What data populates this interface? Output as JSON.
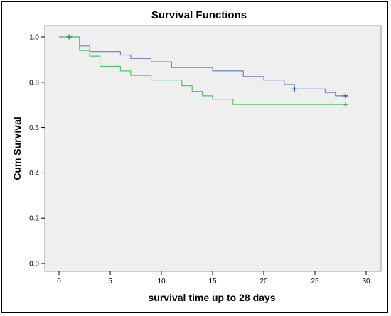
{
  "chart_data": {
    "type": "line",
    "title": "Survival Functions",
    "xlabel": "survival time up to 28 days",
    "ylabel": "Cum Survival",
    "xlim": [
      0,
      30
    ],
    "ylim": [
      0.0,
      1.0
    ],
    "xticks": [
      0,
      5,
      10,
      15,
      20,
      25,
      30
    ],
    "yticks": [
      0.0,
      0.2,
      0.4,
      0.6,
      0.8,
      1.0
    ],
    "ytick_labels": [
      "0.0",
      "0.2",
      "0.4",
      "0.6",
      "0.8",
      "1.0"
    ],
    "grid": false,
    "step": true,
    "series": [
      {
        "color": "#6f7fc8",
        "censor_color": "#3a4fae",
        "points": [
          [
            0,
            1.0
          ],
          [
            2,
            1.0
          ],
          [
            2,
            0.96
          ],
          [
            3,
            0.96
          ],
          [
            3,
            0.935
          ],
          [
            6,
            0.935
          ],
          [
            6,
            0.92
          ],
          [
            7,
            0.92
          ],
          [
            7,
            0.905
          ],
          [
            9,
            0.905
          ],
          [
            9,
            0.89
          ],
          [
            11,
            0.89
          ],
          [
            11,
            0.865
          ],
          [
            15,
            0.865
          ],
          [
            15,
            0.85
          ],
          [
            18,
            0.85
          ],
          [
            18,
            0.825
          ],
          [
            20,
            0.825
          ],
          [
            20,
            0.81
          ],
          [
            22,
            0.81
          ],
          [
            22,
            0.79
          ],
          [
            23,
            0.79
          ],
          [
            23,
            0.77
          ],
          [
            26,
            0.77
          ],
          [
            26,
            0.755
          ],
          [
            27,
            0.755
          ],
          [
            27,
            0.74
          ],
          [
            28,
            0.74
          ]
        ],
        "censored": [
          [
            1,
            1.0
          ],
          [
            23,
            0.77
          ],
          [
            28,
            0.74
          ]
        ]
      },
      {
        "color": "#57c46a",
        "censor_color": "#2fa84a",
        "points": [
          [
            0,
            1.0
          ],
          [
            2,
            1.0
          ],
          [
            2,
            0.94
          ],
          [
            3,
            0.94
          ],
          [
            3,
            0.915
          ],
          [
            4,
            0.915
          ],
          [
            4,
            0.87
          ],
          [
            6,
            0.87
          ],
          [
            6,
            0.85
          ],
          [
            7,
            0.85
          ],
          [
            7,
            0.83
          ],
          [
            9,
            0.83
          ],
          [
            9,
            0.81
          ],
          [
            12,
            0.81
          ],
          [
            12,
            0.785
          ],
          [
            13,
            0.785
          ],
          [
            13,
            0.76
          ],
          [
            14,
            0.76
          ],
          [
            14,
            0.74
          ],
          [
            15,
            0.74
          ],
          [
            15,
            0.725
          ],
          [
            17,
            0.725
          ],
          [
            17,
            0.702
          ],
          [
            28,
            0.702
          ]
        ],
        "censored": [
          [
            1,
            1.0
          ],
          [
            28,
            0.702
          ]
        ]
      }
    ]
  }
}
